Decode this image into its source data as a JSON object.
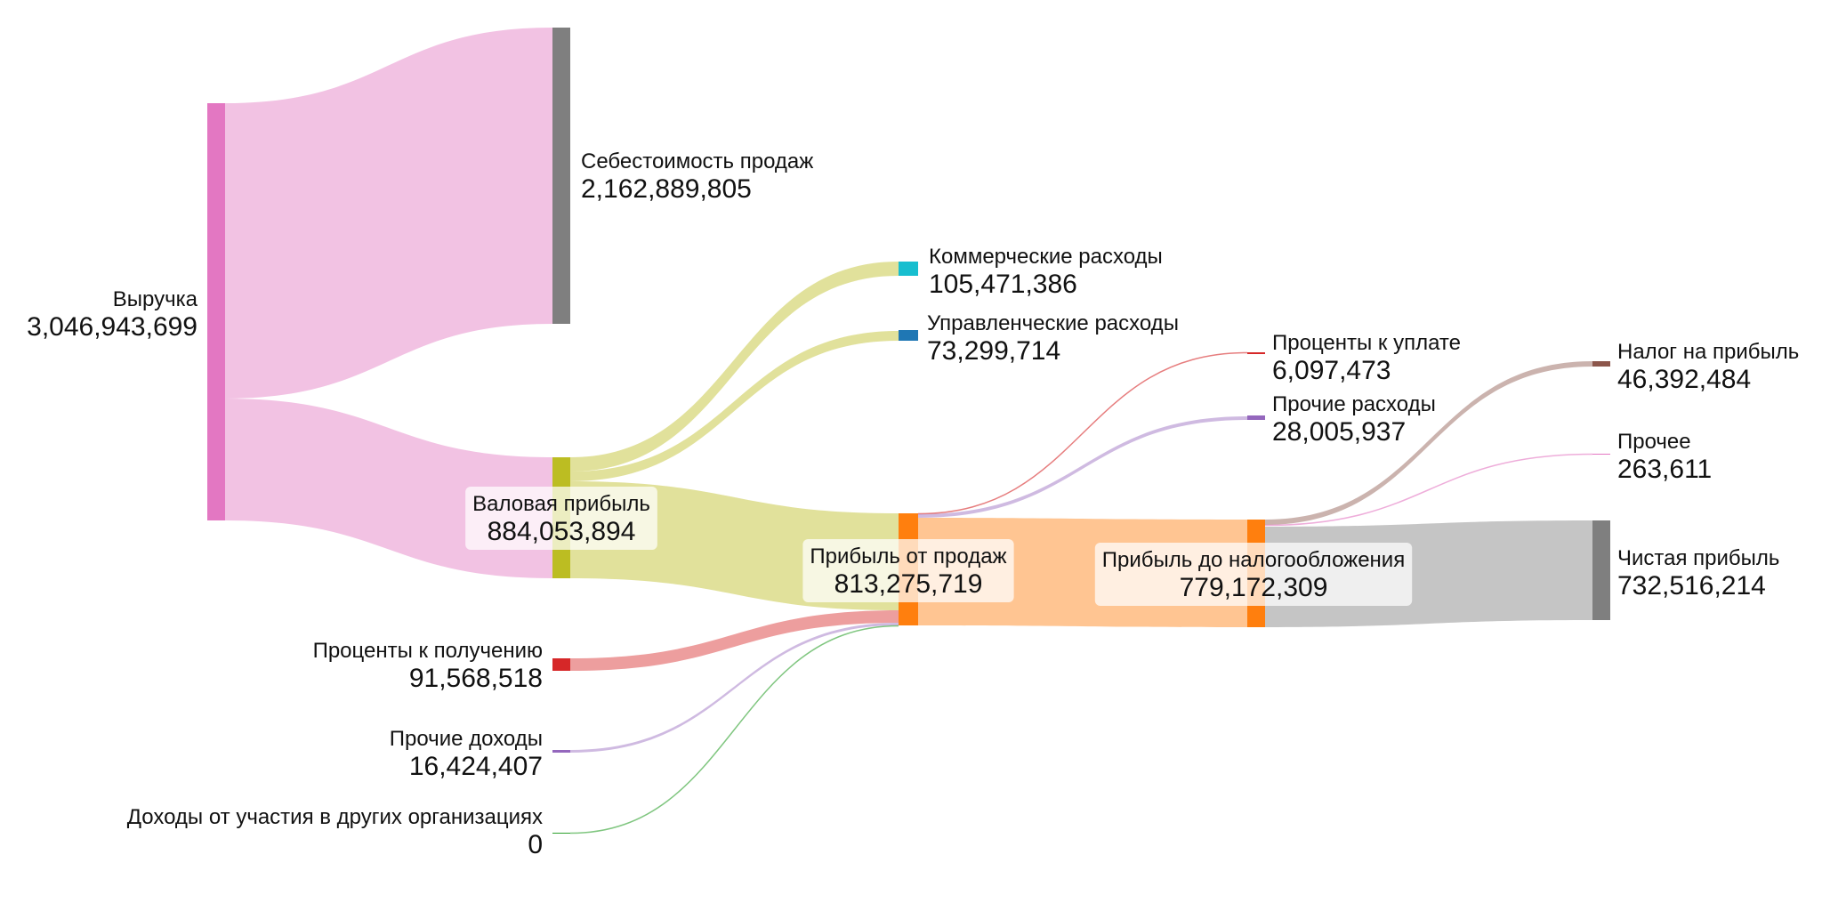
{
  "chart_data": {
    "type": "sankey",
    "nodes": [
      {
        "id": "revenue",
        "name": "Выручка",
        "value": "3,046,943,699",
        "color": "#e377c2"
      },
      {
        "id": "cogs",
        "name": "Себестоимость продаж",
        "value": "2,162,889,805",
        "color": "#7f7f7f"
      },
      {
        "id": "gross",
        "name": "Валовая прибыль",
        "value": "884,053,894",
        "color": "#bcbd22"
      },
      {
        "id": "selling",
        "name": "Коммерческие расходы",
        "value": "105,471,386",
        "color": "#17becf"
      },
      {
        "id": "admin",
        "name": "Управленческие расходы",
        "value": "73,299,714",
        "color": "#1f77b4"
      },
      {
        "id": "int_recv",
        "name": "Проценты к получению",
        "value": "91,568,518",
        "color": "#d62728"
      },
      {
        "id": "oth_inc",
        "name": "Прочие доходы",
        "value": "16,424,407",
        "color": "#9467bd"
      },
      {
        "id": "part_inc",
        "name": "Доходы от участия в других организациях",
        "value": "0",
        "color": "#2ca02c"
      },
      {
        "id": "op_profit",
        "name": "Прибыль от продаж",
        "value": "813,275,719",
        "color": "#ff7f0e"
      },
      {
        "id": "int_pay",
        "name": "Проценты к уплате",
        "value": "6,097,473",
        "color": "#d62728"
      },
      {
        "id": "oth_exp",
        "name": "Прочие расходы",
        "value": "28,005,937",
        "color": "#9467bd"
      },
      {
        "id": "pretax",
        "name": "Прибыль до налогообложения",
        "value": "779,172,309",
        "color": "#ff7f0e"
      },
      {
        "id": "tax",
        "name": "Налог на прибыль",
        "value": "46,392,484",
        "color": "#8c564b"
      },
      {
        "id": "other",
        "name": "Прочее",
        "value": "263,611",
        "color": "#e377c2"
      },
      {
        "id": "net",
        "name": "Чистая прибыль",
        "value": "732,516,214",
        "color": "#7f7f7f"
      }
    ],
    "links": [
      {
        "source": "revenue",
        "target": "cogs",
        "value": 2162889805,
        "color": "#e377c2"
      },
      {
        "source": "revenue",
        "target": "gross",
        "value": 884053894,
        "color": "#e377c2"
      },
      {
        "source": "gross",
        "target": "selling",
        "value": 105471386,
        "color": "#bcbd22"
      },
      {
        "source": "gross",
        "target": "admin",
        "value": 73299714,
        "color": "#bcbd22"
      },
      {
        "source": "gross",
        "target": "op_profit",
        "value": 705282794,
        "color": "#bcbd22"
      },
      {
        "source": "op_profit",
        "target": "int_pay",
        "value": 6097473,
        "color": "#d62728"
      },
      {
        "source": "op_profit",
        "target": "oth_exp",
        "value": 28005937,
        "color": "#9467bd"
      },
      {
        "source": "int_recv",
        "target": "op_profit",
        "value": 91568518,
        "color": "#d62728"
      },
      {
        "source": "oth_inc",
        "target": "op_profit",
        "value": 16424407,
        "color": "#9467bd"
      },
      {
        "source": "part_inc",
        "target": "op_profit",
        "value": 0,
        "color": "#2ca02c"
      },
      {
        "source": "op_profit",
        "target": "pretax",
        "value": 779172309,
        "color": "#ff7f0e"
      },
      {
        "source": "pretax",
        "target": "tax",
        "value": 46392484,
        "color": "#8c564b"
      },
      {
        "source": "pretax",
        "target": "other",
        "value": 263611,
        "color": "#e377c2"
      },
      {
        "source": "pretax",
        "target": "net",
        "value": 732516214,
        "color": "#7f7f7f"
      }
    ]
  }
}
